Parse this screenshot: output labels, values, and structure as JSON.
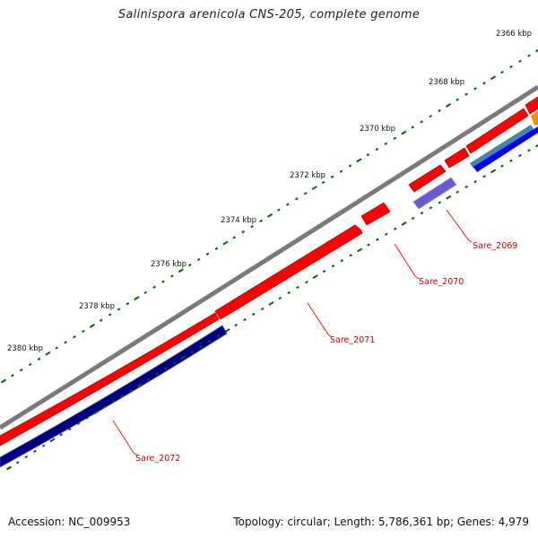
{
  "title": "Salinispora arenicola CNS-205, complete genome",
  "accession": "Accession: NC_009953",
  "summary": "Topology: circular; Length: 5,786,361 bp; Genes: 4,979",
  "ruler_labels": [
    "2366 kbp",
    "2368 kbp",
    "2370 kbp",
    "2372 kbp",
    "2374 kbp",
    "2376 kbp",
    "2378 kbp",
    "2380 kbp"
  ],
  "genes": [
    "Sare_2069",
    "Sare_2070",
    "Sare_2071",
    "Sare_2072"
  ],
  "colors": {
    "backbone": "#7a7a7a",
    "cds": "#ff0000",
    "cds_dark_edge": "#c00000",
    "navy_feature": "#000080",
    "blue_feature": "#0000ee",
    "slate_feature": "#4682b4",
    "purple_feature": "#6a5acd",
    "orange_feature": "#ff8c00",
    "ticks": "#006400",
    "gene_label": "#cc0000",
    "leader_line": "#ff0000"
  }
}
